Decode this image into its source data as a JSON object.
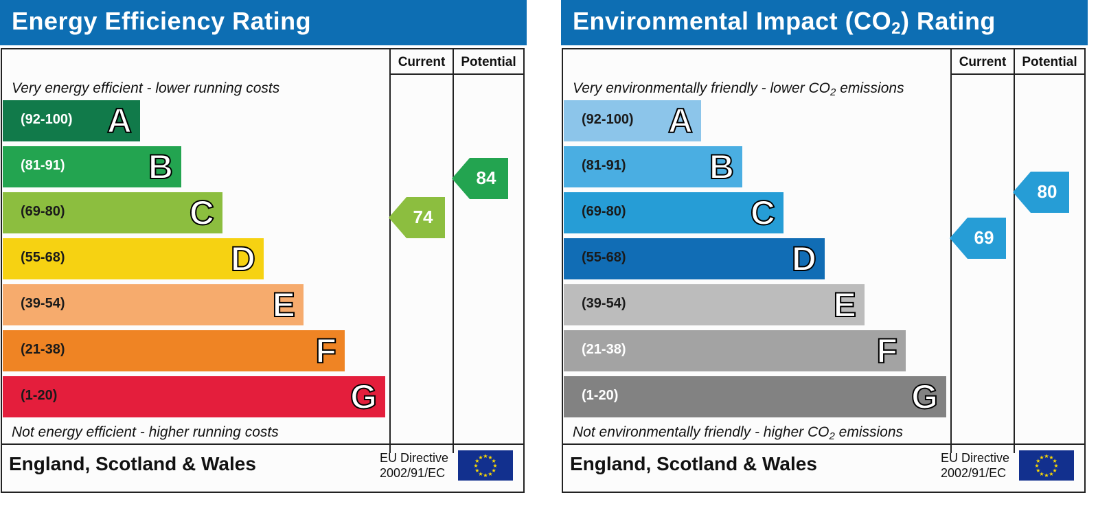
{
  "charts": [
    {
      "id": "energy",
      "title": "Energy Efficiency Rating",
      "title_sub": "",
      "title_suffix": "",
      "col_current": "Current",
      "col_potential": "Potential",
      "top_note": "Very energy efficient - lower running costs",
      "top_note_sub": "",
      "top_note_suffix": "",
      "bottom_note": "Not energy efficient - higher running costs",
      "bottom_note_sub": "",
      "bottom_note_suffix": "",
      "region": "England, Scotland & Wales",
      "directive_line1": "EU Directive",
      "directive_line2": "2002/91/EC"
    },
    {
      "id": "environmental",
      "title": "Environmental Impact (CO",
      "title_sub": "2",
      "title_suffix": ") Rating",
      "col_current": "Current",
      "col_potential": "Potential",
      "top_note": "Very environmentally friendly - lower CO",
      "top_note_sub": "2",
      "top_note_suffix": " emissions",
      "bottom_note": "Not environmentally friendly - higher CO",
      "bottom_note_sub": "2",
      "bottom_note_suffix": " emissions",
      "region": "England, Scotland & Wales",
      "directive_line1": "EU Directive",
      "directive_line2": "2002/91/EC"
    }
  ],
  "chart_data": [
    {
      "type": "bar",
      "title": "Energy Efficiency Rating",
      "bands": [
        {
          "range": "(92-100)",
          "letter": "A",
          "color": "#117a4a",
          "text_color": "#ffffff"
        },
        {
          "range": "(81-91)",
          "letter": "B",
          "color": "#23a450",
          "text_color": "#ffffff"
        },
        {
          "range": "(69-80)",
          "letter": "C",
          "color": "#8cbe3f",
          "text_color": "#1a1a1a"
        },
        {
          "range": "(55-68)",
          "letter": "D",
          "color": "#f6d212",
          "text_color": "#1a1a1a"
        },
        {
          "range": "(39-54)",
          "letter": "E",
          "color": "#f6ab6d",
          "text_color": "#1a1a1a"
        },
        {
          "range": "(21-38)",
          "letter": "F",
          "color": "#ef8424",
          "text_color": "#1a1a1a"
        },
        {
          "range": "(1-20)",
          "letter": "G",
          "color": "#e41e3c",
          "text_color": "#1a1a1a"
        }
      ],
      "current": {
        "value": 74,
        "band": "C",
        "color": "#8cbe3f"
      },
      "potential": {
        "value": 84,
        "band": "B",
        "color": "#23a450"
      }
    },
    {
      "type": "bar",
      "title": "Environmental Impact (CO2) Rating",
      "bands": [
        {
          "range": "(92-100)",
          "letter": "A",
          "color": "#8cc5ea",
          "text_color": "#1a1a1a"
        },
        {
          "range": "(81-91)",
          "letter": "B",
          "color": "#4aaee2",
          "text_color": "#1a1a1a"
        },
        {
          "range": "(69-80)",
          "letter": "C",
          "color": "#269dd6",
          "text_color": "#1a1a1a"
        },
        {
          "range": "(55-68)",
          "letter": "D",
          "color": "#116db5",
          "text_color": "#1a1a1a"
        },
        {
          "range": "(39-54)",
          "letter": "E",
          "color": "#bcbcbc",
          "text_color": "#1a1a1a"
        },
        {
          "range": "(21-38)",
          "letter": "F",
          "color": "#a3a3a3",
          "text_color": "#ffffff"
        },
        {
          "range": "(1-20)",
          "letter": "G",
          "color": "#828282",
          "text_color": "#ffffff"
        }
      ],
      "current": {
        "value": 69,
        "band": "C",
        "color": "#269dd6"
      },
      "potential": {
        "value": 80,
        "band": "C",
        "color": "#269dd6"
      }
    }
  ]
}
